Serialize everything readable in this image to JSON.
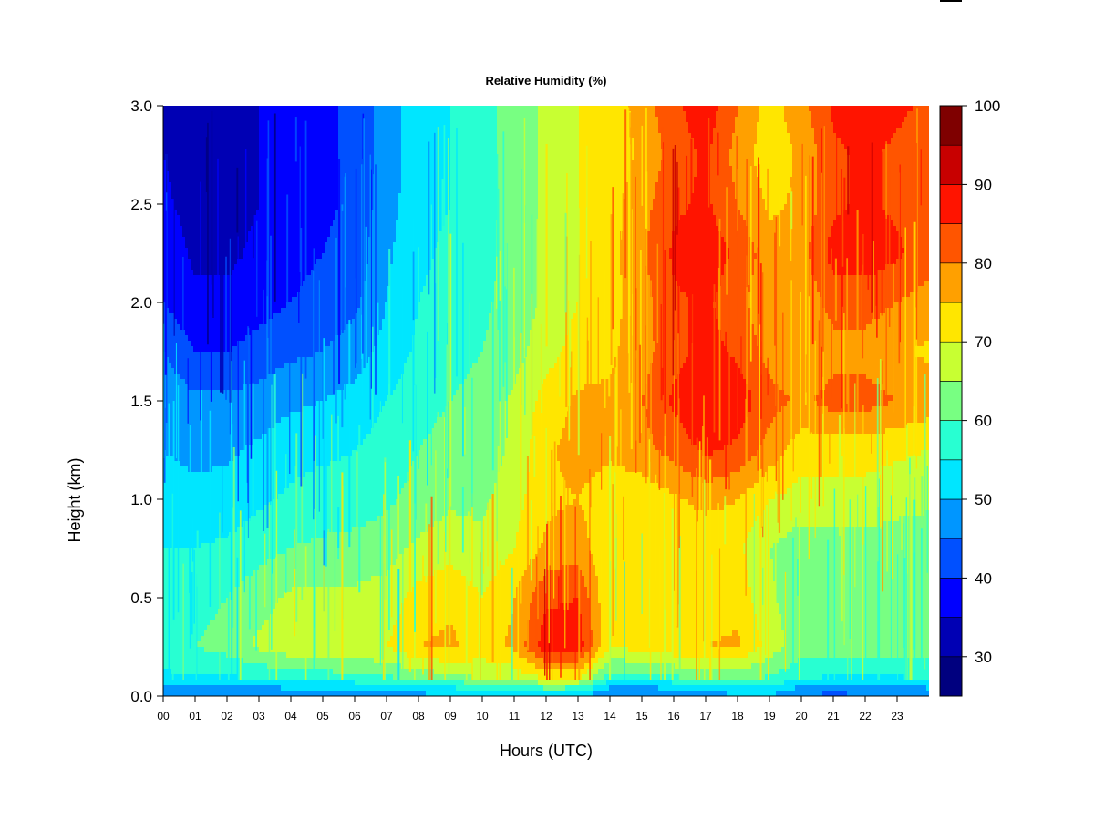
{
  "chart_data": {
    "type": "heatmap",
    "title": "Relative Humidity (%)",
    "xlabel": "Hours (UTC)",
    "ylabel": "Height (km)",
    "x_ticks": [
      "00",
      "01",
      "02",
      "03",
      "04",
      "05",
      "06",
      "07",
      "08",
      "09",
      "10",
      "11",
      "12",
      "13",
      "14",
      "15",
      "16",
      "17",
      "18",
      "19",
      "20",
      "21",
      "22",
      "23"
    ],
    "xlim": [
      0,
      24
    ],
    "y_ticks": [
      "0.0",
      "0.5",
      "1.0",
      "1.5",
      "2.0",
      "2.5",
      "3.0"
    ],
    "ylim": [
      0,
      3.0
    ],
    "colorbar": {
      "levels": [
        25,
        30,
        35,
        40,
        45,
        50,
        55,
        60,
        65,
        70,
        75,
        80,
        85,
        90,
        95,
        100
      ],
      "tick_labels": [
        "30",
        "40",
        "50",
        "60",
        "70",
        "80",
        "90",
        "100"
      ],
      "colors": [
        "#00007f",
        "#0000b4",
        "#0000ff",
        "#0050ff",
        "#0096ff",
        "#00e6ff",
        "#28ffd2",
        "#78ff82",
        "#c8ff32",
        "#ffe600",
        "#ffa000",
        "#ff5500",
        "#ff1400",
        "#c80000",
        "#7f0000"
      ]
    },
    "height_levels_km": [
      0.0,
      0.1,
      0.25,
      0.5,
      0.75,
      1.0,
      1.25,
      1.5,
      1.75,
      2.0,
      2.25,
      2.5,
      2.75,
      3.0
    ],
    "hours_utc": [
      0,
      1,
      2,
      3,
      4,
      5,
      6,
      7,
      8,
      9,
      10,
      11,
      12,
      13,
      14,
      15,
      16,
      17,
      18,
      19,
      20,
      21,
      22,
      23,
      24
    ],
    "rh_percent": [
      [
        44,
        44,
        44,
        44,
        45,
        46,
        46,
        47,
        48,
        48,
        50,
        51,
        52,
        51,
        44,
        43,
        44,
        46,
        49,
        50,
        44,
        43,
        44,
        44,
        46
      ],
      [
        54,
        55,
        55,
        56,
        58,
        58,
        59,
        60,
        62,
        64,
        66,
        67,
        72,
        72,
        58,
        58,
        60,
        62,
        62,
        60,
        56,
        55,
        55,
        55,
        56
      ],
      [
        58,
        60,
        62,
        66,
        68,
        68,
        69,
        70,
        75,
        76,
        73,
        76,
        88,
        88,
        70,
        72,
        74,
        75,
        76,
        68,
        62,
        62,
        63,
        62,
        62
      ],
      [
        57,
        58,
        60,
        63,
        66,
        66,
        66,
        67,
        72,
        74,
        70,
        75,
        84,
        85,
        70,
        71,
        73,
        72,
        73,
        66,
        61,
        62,
        62,
        61,
        61
      ],
      [
        55,
        55,
        56,
        58,
        60,
        61,
        62,
        63,
        66,
        68,
        66,
        70,
        76,
        78,
        70,
        70,
        70,
        70,
        71,
        65,
        62,
        63,
        63,
        62,
        62
      ],
      [
        52,
        51,
        52,
        54,
        56,
        57,
        57,
        59,
        62,
        64,
        64,
        68,
        74,
        75,
        72,
        72,
        74,
        77,
        75,
        70,
        68,
        68,
        68,
        67,
        66
      ],
      [
        50,
        49,
        49,
        51,
        53,
        54,
        55,
        57,
        60,
        62,
        62,
        66,
        74,
        77,
        76,
        78,
        82,
        86,
        84,
        78,
        72,
        72,
        72,
        71,
        70
      ],
      [
        49,
        46,
        46,
        47,
        49,
        50,
        52,
        55,
        58,
        60,
        62,
        66,
        72,
        76,
        76,
        80,
        86,
        90,
        88,
        82,
        79,
        82,
        82,
        80,
        78
      ],
      [
        45,
        40,
        40,
        42,
        44,
        45,
        47,
        52,
        56,
        58,
        60,
        63,
        68,
        72,
        74,
        78,
        83,
        87,
        84,
        78,
        75,
        78,
        78,
        76,
        74
      ],
      [
        40,
        36,
        36,
        38,
        40,
        42,
        44,
        50,
        55,
        57,
        59,
        62,
        66,
        70,
        73,
        78,
        84,
        86,
        82,
        76,
        76,
        82,
        82,
        80,
        78
      ],
      [
        38,
        34,
        34,
        36,
        38,
        40,
        42,
        49,
        54,
        56,
        58,
        62,
        66,
        70,
        73,
        79,
        86,
        88,
        84,
        77,
        78,
        87,
        88,
        86,
        82
      ],
      [
        36,
        33,
        33,
        35,
        37,
        39,
        41,
        48,
        53,
        55,
        58,
        62,
        66,
        70,
        73,
        78,
        84,
        86,
        80,
        74,
        76,
        84,
        86,
        84,
        80
      ],
      [
        35,
        33,
        33,
        35,
        37,
        39,
        41,
        48,
        52,
        55,
        58,
        62,
        66,
        70,
        72,
        76,
        82,
        86,
        78,
        72,
        76,
        84,
        86,
        84,
        82
      ],
      [
        35,
        33,
        33,
        35,
        37,
        39,
        41,
        48,
        52,
        55,
        58,
        62,
        66,
        70,
        72,
        77,
        84,
        88,
        80,
        73,
        78,
        86,
        88,
        86,
        84
      ]
    ]
  }
}
